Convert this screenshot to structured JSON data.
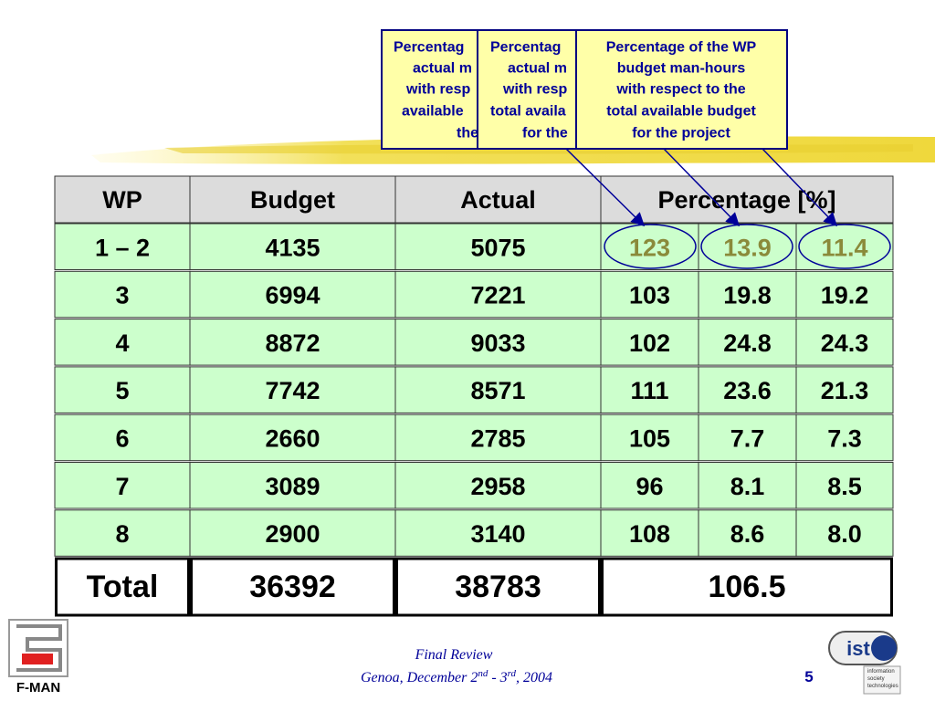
{
  "callouts": [
    {
      "lines": [
        "Percentag",
        "actual m",
        "with resp",
        "available",
        "the"
      ]
    },
    {
      "lines": [
        "Percentag",
        "actual m",
        "with resp",
        "total availa",
        "for the"
      ]
    },
    {
      "lines": [
        "Percentage of the WP",
        "budget man-hours",
        "with respect to the",
        "total available budget",
        "for the project"
      ]
    }
  ],
  "table": {
    "header": [
      "WP",
      "Budget",
      "Actual",
      "Percentage [%]"
    ],
    "rows": [
      [
        "1 – 2",
        "4135",
        "5075",
        "123",
        "13.9",
        "11.4"
      ],
      [
        "3",
        "6994",
        "7221",
        "103",
        "19.8",
        "19.2"
      ],
      [
        "4",
        "8872",
        "9033",
        "102",
        "24.8",
        "24.3"
      ],
      [
        "5",
        "7742",
        "8571",
        "111",
        "23.6",
        "21.3"
      ],
      [
        "6",
        "2660",
        "2785",
        "105",
        "7.7",
        "7.3"
      ],
      [
        "7",
        "3089",
        "2958",
        "96",
        "8.1",
        "8.5"
      ],
      [
        "8",
        "2900",
        "3140",
        "108",
        "8.6",
        "8.0"
      ]
    ],
    "total": [
      "Total",
      "36392",
      "38783",
      "106.5"
    ]
  },
  "footer": {
    "title": "Final Review",
    "date": [
      "Genoa, December 2",
      "nd",
      " - 3",
      "rd",
      ", 2004"
    ],
    "page": "5"
  },
  "logos": {
    "left": "F-MAN",
    "right": "ist",
    "right_caption": [
      "information",
      "society",
      "technologies"
    ]
  }
}
